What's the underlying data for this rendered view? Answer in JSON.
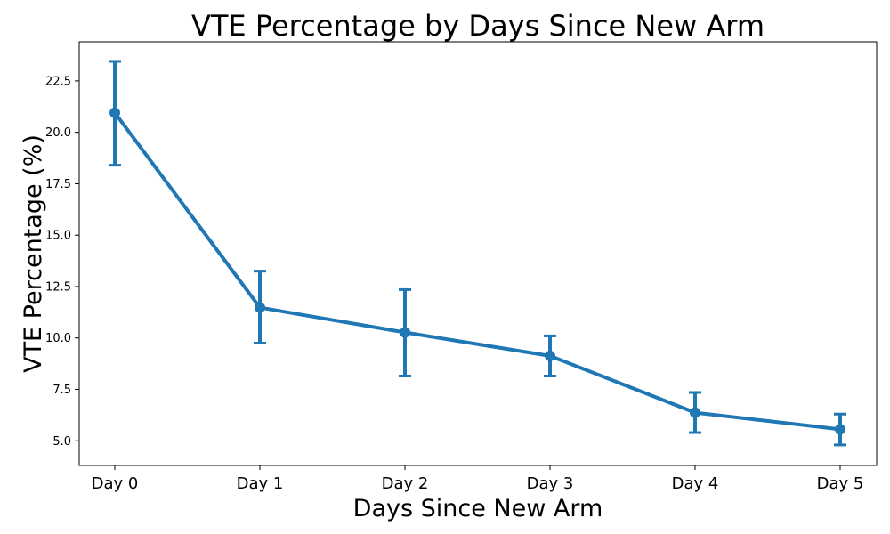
{
  "chart_data": {
    "type": "line",
    "title": "VTE Percentage by Days Since New Arm",
    "xlabel": "Days Since New Arm",
    "ylabel": "VTE Percentage (%)",
    "categories": [
      "Day 0",
      "Day 1",
      "Day 2",
      "Day 3",
      "Day 4",
      "Day 5"
    ],
    "values": [
      20.95,
      11.48,
      10.27,
      9.13,
      6.37,
      5.56
    ],
    "error_lower": [
      18.4,
      9.75,
      8.15,
      8.15,
      5.4,
      4.8
    ],
    "error_upper": [
      23.45,
      13.25,
      12.35,
      10.1,
      7.35,
      6.3
    ],
    "ylim": [
      3.8,
      24.4
    ],
    "yticks": [
      "5.0",
      "7.5",
      "10.0",
      "12.5",
      "15.0",
      "17.5",
      "20.0",
      "22.5"
    ],
    "grid": false,
    "legend": false,
    "color": "#1f77b4"
  }
}
